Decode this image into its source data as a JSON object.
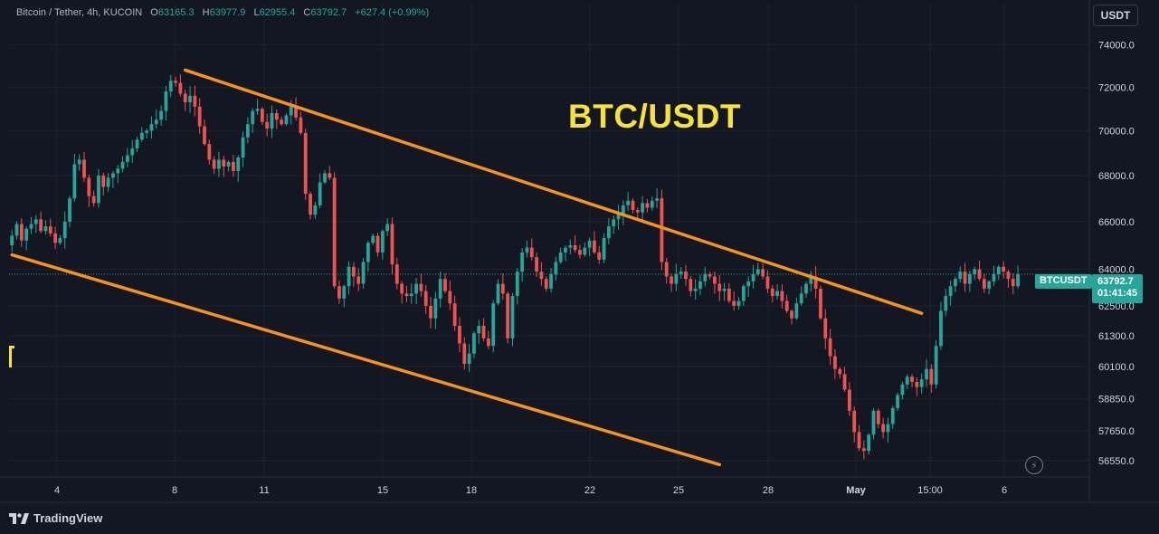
{
  "header": {
    "symbol": "Bitcoin / Tether, 4h, KUCOIN",
    "ohlc": [
      {
        "label": "O",
        "value": "63165.3"
      },
      {
        "label": "H",
        "value": "63977.9"
      },
      {
        "label": "L",
        "value": "62955.4"
      },
      {
        "label": "C",
        "value": "63792.7"
      }
    ],
    "change": "+627.4 (+0.99%)"
  },
  "currency_button": "USDT",
  "overlay_title": "BTC/USDT",
  "price_tag": {
    "symbol": "BTCUSDT",
    "price": "63792.7",
    "countdown": "01:41:45"
  },
  "branding": "TradingView",
  "colors": {
    "background": "#131722",
    "up": "#26a69a",
    "down": "#ef5350",
    "trendline": "#f7931a",
    "title": "#f5e23b",
    "grid": "#1e222d",
    "axis_text": "#d1d4dc"
  },
  "chart_data": {
    "type": "candlestick",
    "interval": "4h",
    "y_scale": "log",
    "ylim": [
      55950,
      76000
    ],
    "y_ticks": [
      "74000.0",
      "72000.0",
      "70000.0",
      "68000.0",
      "66000.0",
      "64000.0",
      "62500.0",
      "61300.0",
      "60100.0",
      "58850.0",
      "57650.0",
      "56550.0"
    ],
    "x_ticks": [
      "4",
      "8",
      "11",
      "15",
      "18",
      "22",
      "25",
      "28",
      "May",
      "15:00",
      "6"
    ],
    "grid": true,
    "last_price": 63792.7,
    "closes": [
      65400,
      65900,
      65200,
      65700,
      65900,
      66100,
      65600,
      65800,
      65500,
      65100,
      65300,
      66000,
      67000,
      68500,
      68700,
      67900,
      67100,
      66800,
      68000,
      67500,
      67900,
      68100,
      68300,
      68600,
      68900,
      69200,
      69600,
      69900,
      70000,
      70300,
      70500,
      70900,
      71800,
      72300,
      72200,
      71700,
      71300,
      71600,
      71100,
      70200,
      69400,
      68700,
      68300,
      68700,
      68400,
      68600,
      68200,
      68800,
      69700,
      70300,
      70900,
      71000,
      70400,
      70100,
      70800,
      70500,
      70300,
      70700,
      71100,
      70600,
      69900,
      67200,
      66300,
      66700,
      67700,
      68100,
      67900,
      63300,
      62800,
      63300,
      64100,
      63700,
      63400,
      64300,
      65100,
      65400,
      64700,
      65600,
      65900,
      64200,
      63400,
      63000,
      62900,
      63000,
      63400,
      63100,
      62500,
      62000,
      62800,
      63600,
      63100,
      62600,
      61700,
      61000,
      60200,
      60600,
      61400,
      61700,
      61200,
      60900,
      62600,
      63400,
      63000,
      61200,
      62900,
      63900,
      64700,
      64900,
      64500,
      63900,
      63600,
      63200,
      63800,
      64300,
      64700,
      64900,
      65000,
      64800,
      64600,
      64900,
      65200,
      64700,
      64400,
      65300,
      65800,
      66100,
      66300,
      66700,
      66900,
      66500,
      66400,
      66800,
      66600,
      66900,
      67000,
      64300,
      63700,
      63400,
      63800,
      63900,
      63600,
      63100,
      63200,
      63500,
      63800,
      63700,
      63400,
      63100,
      63200,
      62700,
      62500,
      62700,
      63300,
      63500,
      63800,
      64000,
      63700,
      63200,
      62900,
      63100,
      62700,
      62300,
      62000,
      62600,
      63000,
      63400,
      63700,
      63200,
      62000,
      61200,
      60500,
      60000,
      59800,
      59200,
      58400,
      57600,
      57000,
      56900,
      57500,
      58400,
      57900,
      57600,
      57900,
      58500,
      59000,
      59400,
      59700,
      59500,
      59300,
      59600,
      60000,
      59400,
      60900,
      62300,
      62900,
      63300,
      63600,
      63900,
      63400,
      63800,
      64000,
      63600,
      63200,
      63500,
      63800,
      64100,
      63900,
      63600,
      63300,
      63792.7
    ],
    "trendlines": [
      {
        "from": {
          "bar": 36,
          "price": 72800
        },
        "to": {
          "bar": 189,
          "price": 62200
        }
      },
      {
        "from": {
          "bar": 0,
          "price": 64600
        },
        "to": {
          "bar": 147,
          "price": 56400
        }
      }
    ]
  }
}
